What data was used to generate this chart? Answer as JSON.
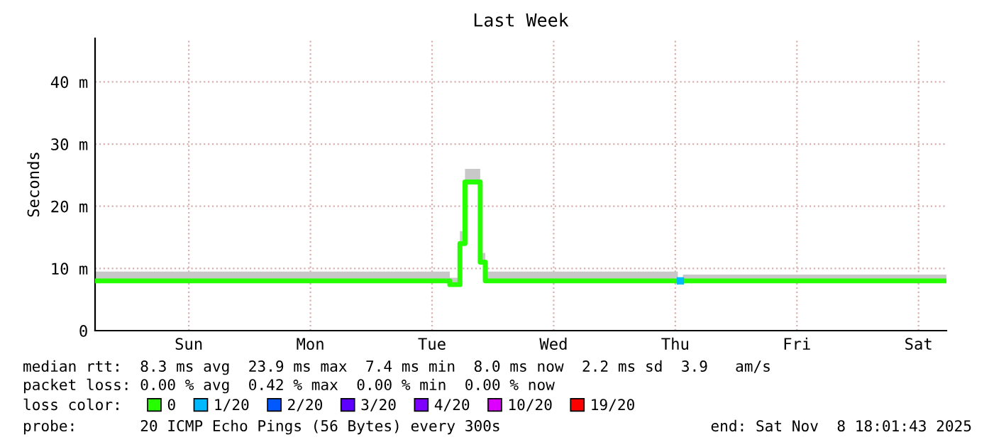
{
  "chart_data": {
    "type": "step",
    "title": "Last Week",
    "ylabel": "Seconds",
    "categories": [
      null,
      null,
      null,
      null,
      null,
      null,
      null,
      null,
      null,
      null,
      null,
      null,
      null,
      null,
      null,
      null,
      null,
      null,
      "Sun",
      null,
      null,
      null,
      null,
      null,
      null,
      null,
      null,
      null,
      null,
      null,
      null,
      null,
      null,
      null,
      null,
      null,
      null,
      null,
      null,
      null,
      null,
      null,
      "Mon",
      null,
      null,
      null,
      null,
      null,
      null,
      null,
      null,
      null,
      null,
      null,
      null,
      null,
      null,
      null,
      null,
      null,
      null,
      null,
      null,
      null,
      null,
      null,
      "Tue",
      null,
      null,
      null,
      null,
      null,
      null,
      null,
      null,
      null,
      null,
      null,
      null,
      null,
      null,
      null,
      null,
      null,
      null,
      null,
      null,
      null,
      null,
      null,
      "Wed",
      null,
      null,
      null,
      null,
      null,
      null,
      null,
      null,
      null,
      null,
      null,
      null,
      null,
      null,
      null,
      null,
      null,
      null,
      null,
      null,
      null,
      null,
      null,
      "Thu",
      null,
      null,
      null,
      null,
      null,
      null,
      null,
      null,
      null,
      null,
      null,
      null,
      null,
      null,
      null,
      null,
      null,
      null,
      null,
      null,
      null,
      null,
      null,
      "Fri",
      null,
      null,
      null,
      null,
      null,
      null,
      null,
      null,
      null,
      null,
      null,
      null,
      null,
      null,
      null,
      null,
      null,
      null,
      null,
      null,
      null,
      null,
      null,
      "Sat",
      null,
      null,
      null,
      null,
      null
    ],
    "ylim": [
      0,
      47
    ],
    "yticks": [
      0,
      {
        "value": 10,
        "label": "10 m"
      },
      {
        "value": 20,
        "label": "20 m"
      },
      {
        "value": 30,
        "label": "30 m"
      },
      {
        "value": 40,
        "label": "40 m"
      }
    ],
    "grid": true,
    "legend": "bottom",
    "legend_title": "loss color:",
    "series": [
      {
        "name": "0",
        "color": "#26ff00",
        "values": [
          8.0,
          8.0,
          8.0,
          8.0,
          8.0,
          8.0,
          8.0,
          8.0,
          8.0,
          8.0,
          8.0,
          8.0,
          8.0,
          8.0,
          8.0,
          8.0,
          8.0,
          8.0,
          8.0,
          8.0,
          8.0,
          8.0,
          8.0,
          8.0,
          8.0,
          8.0,
          8.0,
          8.0,
          8.0,
          8.0,
          8.0,
          8.0,
          8.0,
          8.0,
          8.0,
          8.0,
          8.0,
          8.0,
          8.0,
          8.0,
          8.0,
          8.0,
          8.0,
          8.0,
          8.0,
          8.0,
          8.0,
          8.0,
          8.0,
          8.0,
          8.0,
          8.0,
          8.0,
          8.0,
          8.0,
          8.0,
          8.0,
          8.0,
          8.0,
          8.0,
          8.0,
          8.0,
          8.0,
          8.0,
          8.0,
          8.0,
          8.0,
          8.0,
          8.0,
          8.0,
          7.4,
          7.4,
          14,
          23.9,
          23.9,
          23.9,
          11,
          8.0,
          8.0,
          8.0,
          8.0,
          8.0,
          8.0,
          8.0,
          8.0,
          8.0,
          8.0,
          8.0,
          8.0,
          8.0,
          8.0,
          8.0,
          8.0,
          8.0,
          8.0,
          8.0,
          8.0,
          8.0,
          8.0,
          8.0,
          8.0,
          8.0,
          8.0,
          8.0,
          8.0,
          8.0,
          8.0,
          8.0,
          8.0,
          8.0,
          8.0,
          8.0,
          8.0,
          8.0,
          8.0,
          null,
          8.0,
          8.0,
          8.0,
          8.0,
          8.0,
          8.0,
          8.0,
          8.0,
          8.0,
          8.0,
          8.0,
          8.0,
          8.0,
          8.0,
          8.0,
          8.0,
          8.0,
          8.0,
          8.0,
          8.0,
          8.0,
          8.0,
          8.0,
          8.0,
          8.0,
          8.0,
          8.0,
          8.0,
          8.0,
          8.0,
          8.0,
          8.0,
          8.0,
          8.0,
          8.0,
          8.0,
          8.0,
          8.0,
          8.0,
          8.0,
          8.0,
          8.0,
          8.0,
          8.0,
          8.0,
          8.0,
          8.0,
          8.0,
          8.0,
          8.0,
          8.0,
          8.0
        ],
        "lower": [
          8.0,
          8.0,
          8.0,
          8.0,
          8.0,
          8.0,
          8.0,
          8.0,
          8.0,
          8.0,
          8.0,
          8.0,
          8.0,
          8.0,
          8.0,
          8.0,
          8.0,
          8.0,
          8.0,
          8.0,
          8.0,
          8.0,
          8.0,
          8.0,
          8.0,
          8.0,
          8.0,
          8.0,
          8.0,
          8.0,
          8.0,
          8.0,
          8.0,
          8.0,
          8.0,
          8.0,
          8.0,
          8.0,
          8.0,
          8.0,
          8.0,
          8.0,
          8.0,
          8.0,
          8.0,
          8.0,
          8.0,
          8.0,
          8.0,
          8.0,
          8.0,
          8.0,
          8.0,
          8.0,
          8.0,
          8.0,
          8.0,
          8.0,
          8.0,
          8.0,
          8.0,
          8.0,
          8.0,
          8.0,
          8.0,
          8.0,
          8.0,
          8.0,
          8.0,
          8.0,
          7.4,
          7.4,
          14,
          23.9,
          23.9,
          23.9,
          11,
          8.0,
          8.0,
          8.0,
          8.0,
          8.0,
          8.0,
          8.0,
          8.0,
          8.0,
          8.0,
          8.0,
          8.0,
          8.0,
          8.0,
          8.0,
          8.0,
          8.0,
          8.0,
          8.0,
          8.0,
          8.0,
          8.0,
          8.0,
          8.0,
          8.0,
          8.0,
          8.0,
          8.0,
          8.0,
          8.0,
          8.0,
          8.0,
          8.0,
          8.0,
          8.0,
          8.0,
          8.0,
          8.0,
          null,
          8.0,
          8.0,
          8.0,
          8.0,
          8.0,
          8.0,
          8.0,
          8.0,
          8.0,
          8.0,
          8.0,
          8.0,
          8.0,
          8.0,
          8.0,
          8.0,
          8.0,
          8.0,
          8.0,
          8.0,
          8.0,
          8.0,
          8.0,
          8.0,
          8.0,
          8.0,
          8.0,
          8.0,
          8.0,
          8.0,
          8.0,
          8.0,
          8.0,
          8.0,
          8.0,
          8.0,
          8.0,
          8.0,
          8.0,
          8.0,
          8.0,
          8.0,
          8.0,
          8.0,
          8.0,
          8.0,
          8.0,
          8.0,
          8.0,
          8.0,
          8.0,
          8.0
        ],
        "upper": [
          9.5,
          9.5,
          9.5,
          9.5,
          9.5,
          9.5,
          9.5,
          9.5,
          9.5,
          9.5,
          9.5,
          9.5,
          9.5,
          9.5,
          9.5,
          9.5,
          9.5,
          9.5,
          9.5,
          9.5,
          9.5,
          9.5,
          9.5,
          9.5,
          9.5,
          9.5,
          9.5,
          9.5,
          9.5,
          9.5,
          9.5,
          9.5,
          9.5,
          9.5,
          9.5,
          9.5,
          9.5,
          9.5,
          9.5,
          9.5,
          9.5,
          9.5,
          9.5,
          9.5,
          9.5,
          9.5,
          9.5,
          9.5,
          9.5,
          9.5,
          9.5,
          9.5,
          9.5,
          9.5,
          9.5,
          9.5,
          9.5,
          9.5,
          9.5,
          9.5,
          9.5,
          9.5,
          9.5,
          9.5,
          9.5,
          9.5,
          9.5,
          9.5,
          9.5,
          9.5,
          8.5,
          8.5,
          16,
          26,
          26,
          26,
          12.5,
          9.5,
          9.5,
          9.5,
          9.5,
          9.5,
          9.5,
          9.5,
          9.5,
          9.5,
          9.5,
          9.5,
          9.5,
          9.5,
          9.5,
          9.5,
          9.5,
          9.5,
          9.5,
          9.5,
          9.5,
          9.5,
          9.5,
          9.5,
          9.5,
          9.5,
          9.5,
          9.5,
          9.5,
          9.5,
          9.5,
          9.5,
          9.5,
          9.5,
          9.5,
          9.5,
          9.5,
          9.5,
          9.5,
          null,
          9,
          9,
          9,
          9,
          9,
          9,
          9,
          9,
          9,
          9,
          9,
          9,
          9,
          9,
          9,
          9,
          9,
          9,
          9,
          9,
          9,
          9,
          9,
          9,
          9,
          9,
          9,
          9,
          9,
          9,
          9,
          9,
          9,
          9,
          9,
          9,
          9,
          9,
          9,
          9,
          9,
          9,
          9,
          9,
          9,
          9,
          9,
          9,
          9,
          9,
          9,
          9
        ]
      },
      {
        "name": "1/20",
        "color": "#00b8ff",
        "type": "scatter",
        "marker": "square",
        "values": [
          null,
          null,
          null,
          null,
          null,
          null,
          null,
          null,
          null,
          null,
          null,
          null,
          null,
          null,
          null,
          null,
          null,
          null,
          null,
          null,
          null,
          null,
          null,
          null,
          null,
          null,
          null,
          null,
          null,
          null,
          null,
          null,
          null,
          null,
          null,
          null,
          null,
          null,
          null,
          null,
          null,
          null,
          null,
          null,
          null,
          null,
          null,
          null,
          null,
          null,
          null,
          null,
          null,
          null,
          null,
          null,
          null,
          null,
          null,
          null,
          null,
          null,
          null,
          null,
          null,
          null,
          null,
          null,
          null,
          null,
          null,
          null,
          null,
          null,
          null,
          null,
          null,
          null,
          null,
          null,
          null,
          null,
          null,
          null,
          null,
          null,
          null,
          null,
          null,
          null,
          null,
          null,
          null,
          null,
          null,
          null,
          null,
          null,
          null,
          null,
          null,
          null,
          null,
          null,
          null,
          null,
          null,
          null,
          null,
          null,
          null,
          null,
          null,
          null,
          null,
          8.0,
          null,
          null,
          null,
          null,
          null,
          null,
          null,
          null,
          null,
          null,
          null,
          null,
          null,
          null,
          null,
          null,
          null,
          null,
          null,
          null,
          null,
          null,
          null,
          null,
          null,
          null,
          null,
          null,
          null,
          null,
          null,
          null,
          null,
          null,
          null,
          null,
          null,
          null,
          null,
          null,
          null,
          null,
          null,
          null,
          null,
          null,
          null,
          null,
          null,
          null,
          null,
          null
        ]
      },
      {
        "name": "2/20",
        "color": "#0059ff",
        "values": [
          null,
          null,
          null,
          null,
          null,
          null,
          null,
          null,
          null,
          null,
          null,
          null,
          null,
          null,
          null,
          null,
          null,
          null,
          null,
          null,
          null,
          null,
          null,
          null,
          null,
          null,
          null,
          null,
          null,
          null,
          null,
          null,
          null,
          null,
          null,
          null,
          null,
          null,
          null,
          null,
          null,
          null,
          null,
          null,
          null,
          null,
          null,
          null,
          null,
          null,
          null,
          null,
          null,
          null,
          null,
          null,
          null,
          null,
          null,
          null,
          null,
          null,
          null,
          null,
          null,
          null,
          null,
          null,
          null,
          null,
          null,
          null,
          null,
          null,
          null,
          null,
          null,
          null,
          null,
          null,
          null,
          null,
          null,
          null,
          null,
          null,
          null,
          null,
          null,
          null,
          null,
          null,
          null,
          null,
          null,
          null,
          null,
          null,
          null,
          null,
          null,
          null,
          null,
          null,
          null,
          null,
          null,
          null,
          null,
          null,
          null,
          null,
          null,
          null,
          null,
          null,
          null,
          null,
          null,
          null,
          null,
          null,
          null,
          null,
          null,
          null,
          null,
          null,
          null,
          null,
          null,
          null,
          null,
          null,
          null,
          null,
          null,
          null,
          null,
          null,
          null,
          null,
          null,
          null,
          null,
          null,
          null,
          null,
          null,
          null,
          null,
          null,
          null,
          null,
          null,
          null,
          null,
          null,
          null,
          null,
          null,
          null,
          null,
          null,
          null,
          null,
          null,
          null
        ]
      },
      {
        "name": "3/20",
        "color": "#5e00ff",
        "values": [
          null,
          null,
          null,
          null,
          null,
          null,
          null,
          null,
          null,
          null,
          null,
          null,
          null,
          null,
          null,
          null,
          null,
          null,
          null,
          null,
          null,
          null,
          null,
          null,
          null,
          null,
          null,
          null,
          null,
          null,
          null,
          null,
          null,
          null,
          null,
          null,
          null,
          null,
          null,
          null,
          null,
          null,
          null,
          null,
          null,
          null,
          null,
          null,
          null,
          null,
          null,
          null,
          null,
          null,
          null,
          null,
          null,
          null,
          null,
          null,
          null,
          null,
          null,
          null,
          null,
          null,
          null,
          null,
          null,
          null,
          null,
          null,
          null,
          null,
          null,
          null,
          null,
          null,
          null,
          null,
          null,
          null,
          null,
          null,
          null,
          null,
          null,
          null,
          null,
          null,
          null,
          null,
          null,
          null,
          null,
          null,
          null,
          null,
          null,
          null,
          null,
          null,
          null,
          null,
          null,
          null,
          null,
          null,
          null,
          null,
          null,
          null,
          null,
          null,
          null,
          null,
          null,
          null,
          null,
          null,
          null,
          null,
          null,
          null,
          null,
          null,
          null,
          null,
          null,
          null,
          null,
          null,
          null,
          null,
          null,
          null,
          null,
          null,
          null,
          null,
          null,
          null,
          null,
          null,
          null,
          null,
          null,
          null,
          null,
          null,
          null,
          null,
          null,
          null,
          null,
          null,
          null,
          null,
          null,
          null,
          null,
          null,
          null,
          null,
          null,
          null,
          null,
          null
        ]
      },
      {
        "name": "4/20",
        "color": "#7e00ff",
        "values": [
          null,
          null,
          null,
          null,
          null,
          null,
          null,
          null,
          null,
          null,
          null,
          null,
          null,
          null,
          null,
          null,
          null,
          null,
          null,
          null,
          null,
          null,
          null,
          null,
          null,
          null,
          null,
          null,
          null,
          null,
          null,
          null,
          null,
          null,
          null,
          null,
          null,
          null,
          null,
          null,
          null,
          null,
          null,
          null,
          null,
          null,
          null,
          null,
          null,
          null,
          null,
          null,
          null,
          null,
          null,
          null,
          null,
          null,
          null,
          null,
          null,
          null,
          null,
          null,
          null,
          null,
          null,
          null,
          null,
          null,
          null,
          null,
          null,
          null,
          null,
          null,
          null,
          null,
          null,
          null,
          null,
          null,
          null,
          null,
          null,
          null,
          null,
          null,
          null,
          null,
          null,
          null,
          null,
          null,
          null,
          null,
          null,
          null,
          null,
          null,
          null,
          null,
          null,
          null,
          null,
          null,
          null,
          null,
          null,
          null,
          null,
          null,
          null,
          null,
          null,
          null,
          null,
          null,
          null,
          null,
          null,
          null,
          null,
          null,
          null,
          null,
          null,
          null,
          null,
          null,
          null,
          null,
          null,
          null,
          null,
          null,
          null,
          null,
          null,
          null,
          null,
          null,
          null,
          null,
          null,
          null,
          null,
          null,
          null,
          null,
          null,
          null,
          null,
          null,
          null,
          null,
          null,
          null,
          null,
          null,
          null,
          null,
          null,
          null,
          null,
          null,
          null,
          null
        ]
      },
      {
        "name": "10/20",
        "color": "#dd00ff",
        "values": [
          null,
          null,
          null,
          null,
          null,
          null,
          null,
          null,
          null,
          null,
          null,
          null,
          null,
          null,
          null,
          null,
          null,
          null,
          null,
          null,
          null,
          null,
          null,
          null,
          null,
          null,
          null,
          null,
          null,
          null,
          null,
          null,
          null,
          null,
          null,
          null,
          null,
          null,
          null,
          null,
          null,
          null,
          null,
          null,
          null,
          null,
          null,
          null,
          null,
          null,
          null,
          null,
          null,
          null,
          null,
          null,
          null,
          null,
          null,
          null,
          null,
          null,
          null,
          null,
          null,
          null,
          null,
          null,
          null,
          null,
          null,
          null,
          null,
          null,
          null,
          null,
          null,
          null,
          null,
          null,
          null,
          null,
          null,
          null,
          null,
          null,
          null,
          null,
          null,
          null,
          null,
          null,
          null,
          null,
          null,
          null,
          null,
          null,
          null,
          null,
          null,
          null,
          null,
          null,
          null,
          null,
          null,
          null,
          null,
          null,
          null,
          null,
          null,
          null,
          null,
          null,
          null,
          null,
          null,
          null,
          null,
          null,
          null,
          null,
          null,
          null,
          null,
          null,
          null,
          null,
          null,
          null,
          null,
          null,
          null,
          null,
          null,
          null,
          null,
          null,
          null,
          null,
          null,
          null,
          null,
          null,
          null,
          null,
          null,
          null,
          null,
          null,
          null,
          null,
          null,
          null,
          null,
          null,
          null,
          null,
          null,
          null,
          null,
          null,
          null,
          null,
          null,
          null
        ]
      },
      {
        "name": "19/20",
        "color": "#ff0000",
        "values": [
          null,
          null,
          null,
          null,
          null,
          null,
          null,
          null,
          null,
          null,
          null,
          null,
          null,
          null,
          null,
          null,
          null,
          null,
          null,
          null,
          null,
          null,
          null,
          null,
          null,
          null,
          null,
          null,
          null,
          null,
          null,
          null,
          null,
          null,
          null,
          null,
          null,
          null,
          null,
          null,
          null,
          null,
          null,
          null,
          null,
          null,
          null,
          null,
          null,
          null,
          null,
          null,
          null,
          null,
          null,
          null,
          null,
          null,
          null,
          null,
          null,
          null,
          null,
          null,
          null,
          null,
          null,
          null,
          null,
          null,
          null,
          null,
          null,
          null,
          null,
          null,
          null,
          null,
          null,
          null,
          null,
          null,
          null,
          null,
          null,
          null,
          null,
          null,
          null,
          null,
          null,
          null,
          null,
          null,
          null,
          null,
          null,
          null,
          null,
          null,
          null,
          null,
          null,
          null,
          null,
          null,
          null,
          null,
          null,
          null,
          null,
          null,
          null,
          null,
          null,
          null,
          null,
          null,
          null,
          null,
          null,
          null,
          null,
          null,
          null,
          null,
          null,
          null,
          null,
          null,
          null,
          null,
          null,
          null,
          null,
          null,
          null,
          null,
          null,
          null,
          null,
          null,
          null,
          null,
          null,
          null,
          null,
          null,
          null,
          null,
          null,
          null,
          null,
          null,
          null,
          null,
          null,
          null,
          null,
          null,
          null,
          null,
          null,
          null,
          null,
          null,
          null,
          null
        ]
      }
    ],
    "annotations": [
      "median rtt:  8.3 ms avg  23.9 ms max  7.4 ms min  8.0 ms now  2.2 ms sd  3.9   am/s",
      "packet loss: 0.00 % avg  0.42 % max  0.00 % min  0.00 % now",
      "probe:       20 ICMP Echo Pings (56 Bytes) every 300s",
      "end: Sat Nov  8 18:01:43 2025"
    ]
  }
}
